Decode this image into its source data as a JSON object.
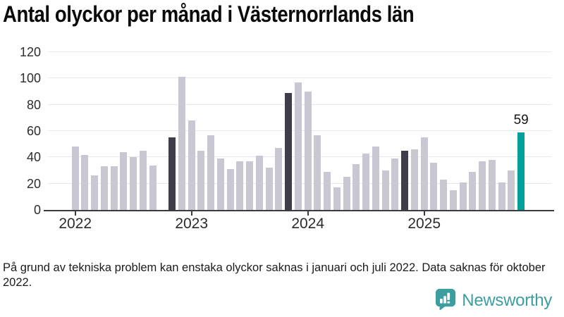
{
  "title": "Antal olyckor per månad i Västernorrlands län",
  "footnote": "På grund av tekniska problem kan enstaka olyckor saknas i januari och juli 2022. Data saknas för oktober 2022.",
  "annotation": {
    "label": "59",
    "month": "2025-11"
  },
  "branding": {
    "logo_text": "Newsworthy",
    "logo_icon": "bar-chart-speech-bubble-icon",
    "logo_color": "#3d9ea0"
  },
  "colors": {
    "bar_default": "#c9c7d2",
    "bar_dark": "#3f3d4a",
    "bar_highlight": "#00a19a",
    "gridline": "#e8e7ec",
    "axis": "#3b3b3b"
  },
  "chart_data": {
    "type": "bar",
    "title": "Antal olyckor per månad i Västernorrlands län",
    "xlabel": "",
    "ylabel": "",
    "ylim": [
      0,
      120
    ],
    "yticks": [
      0,
      20,
      40,
      60,
      80,
      100,
      120
    ],
    "xticks": [
      "2022",
      "2023",
      "2024",
      "2025"
    ],
    "grid": true,
    "legend": false,
    "note": "Value for 2022-10 is missing (no bar drawn)",
    "x": [
      "2022-01",
      "2022-02",
      "2022-03",
      "2022-04",
      "2022-05",
      "2022-06",
      "2022-07",
      "2022-08",
      "2022-09",
      "2022-10",
      "2022-11",
      "2022-12",
      "2023-01",
      "2023-02",
      "2023-03",
      "2023-04",
      "2023-05",
      "2023-06",
      "2023-07",
      "2023-08",
      "2023-09",
      "2023-10",
      "2023-11",
      "2023-12",
      "2024-01",
      "2024-02",
      "2024-03",
      "2024-04",
      "2024-05",
      "2024-06",
      "2024-07",
      "2024-08",
      "2024-09",
      "2024-10",
      "2024-11",
      "2024-12",
      "2025-01",
      "2025-02",
      "2025-03",
      "2025-04",
      "2025-05",
      "2025-06",
      "2025-07",
      "2025-08",
      "2025-09",
      "2025-10",
      "2025-11"
    ],
    "values": [
      48,
      42,
      26,
      33,
      33,
      44,
      40,
      45,
      34,
      null,
      55,
      101,
      68,
      45,
      57,
      39,
      31,
      37,
      37,
      41,
      32,
      47,
      89,
      97,
      90,
      57,
      29,
      17,
      25,
      35,
      43,
      48,
      30,
      39,
      45,
      46,
      55,
      36,
      23,
      15,
      21,
      29,
      37,
      38,
      21,
      30,
      59
    ],
    "highlight_dark": [
      "2022-11",
      "2023-11",
      "2024-11"
    ],
    "highlight_accent": [
      "2025-11"
    ]
  }
}
